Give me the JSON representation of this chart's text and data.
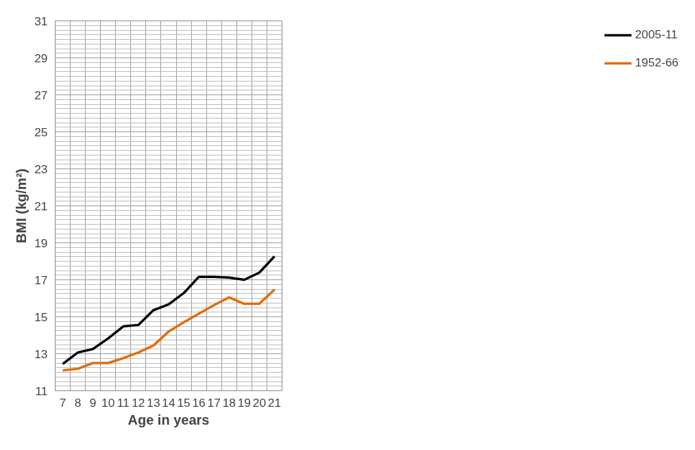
{
  "chart_data": {
    "type": "line",
    "xlabel": "Age in years",
    "ylabel": "BMI (kg/m²)",
    "categories": [
      "7",
      "8",
      "9",
      "10",
      "11",
      "12",
      "13",
      "14",
      "15",
      "16",
      "17",
      "18",
      "19",
      "20",
      "21"
    ],
    "series": [
      {
        "name": "2005-11",
        "color": "#000000",
        "values": [
          12.45,
          13.07,
          13.26,
          13.83,
          14.48,
          14.56,
          15.36,
          15.67,
          16.28,
          17.16,
          17.16,
          17.12,
          17.0,
          17.39,
          18.27
        ]
      },
      {
        "name": "1952-66",
        "color": "#e36c0a",
        "values": [
          12.1,
          12.19,
          12.5,
          12.5,
          12.76,
          13.07,
          13.45,
          14.2,
          14.7,
          15.17,
          15.63,
          16.05,
          15.7,
          15.7,
          16.47
        ]
      }
    ],
    "ylim": [
      11,
      31
    ],
    "yticks": [
      11,
      13,
      15,
      17,
      19,
      21,
      23,
      25,
      27,
      29,
      31
    ],
    "grid": true,
    "legend": "right",
    "marker": "none",
    "line_style": "solid"
  }
}
